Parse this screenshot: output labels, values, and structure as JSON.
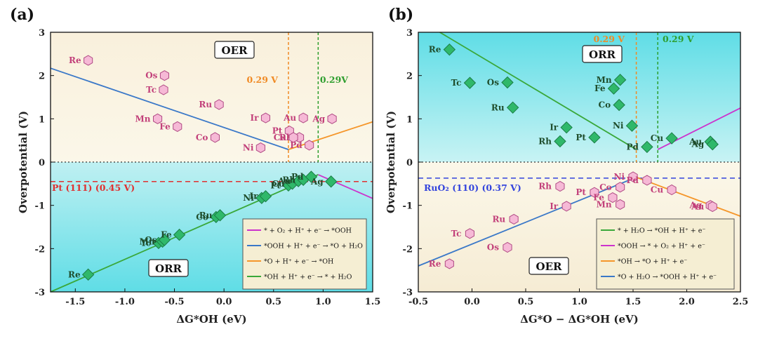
{
  "chart_data": [
    {
      "type": "scatter",
      "panel_label": "(a)",
      "xlabel": "ΔG*OH (eV)",
      "ylabel": "Overpotential (V)",
      "xlim": [
        -1.75,
        1.5
      ],
      "ylim": [
        -3,
        3
      ],
      "xticks": [
        "-1.5",
        "-1.0",
        "-0.5",
        "0.0",
        "0.5",
        "1.0",
        "1.5"
      ],
      "xtick_values": [
        -1.5,
        -1.0,
        -0.5,
        0.0,
        0.5,
        1.0,
        1.5
      ],
      "yticks": [
        "-3",
        "-2",
        "-1",
        "0",
        "1",
        "2",
        "3"
      ],
      "ytick_values": [
        -3,
        -2,
        -1,
        0,
        1,
        2,
        3
      ],
      "region_labels": {
        "top": "OER",
        "bottom": "ORR"
      },
      "reference_line": {
        "label": "Pt (111) (0.45 V)",
        "y": -0.45,
        "color": "#e03030"
      },
      "vlines": [
        {
          "x": 0.65,
          "label": "0.29 V",
          "color": "#f08a24"
        },
        {
          "x": 0.95,
          "label": "0.29V",
          "color": "#2e9e2e"
        }
      ],
      "lines": [
        {
          "color": "#cc33cc",
          "points": [
            [
              0.95,
              -0.29
            ],
            [
              1.5,
              -0.84
            ]
          ]
        },
        {
          "color": "#3a78c8",
          "points": [
            [
              -1.75,
              2.17
            ],
            [
              0.65,
              0.29
            ]
          ]
        },
        {
          "color": "#f5962a",
          "points": [
            [
              0.65,
              0.29
            ],
            [
              1.5,
              0.93
            ]
          ]
        },
        {
          "color": "#3aa83a",
          "points": [
            [
              -1.75,
              -3.0
            ],
            [
              0.95,
              -0.29
            ]
          ]
        }
      ],
      "oer_points": [
        {
          "name": "Re",
          "x": -1.37,
          "y": 2.35
        },
        {
          "name": "Os",
          "x": -0.6,
          "y": 2.0
        },
        {
          "name": "Tc",
          "x": -0.61,
          "y": 1.67
        },
        {
          "name": "Ru",
          "x": -0.05,
          "y": 1.33
        },
        {
          "name": "Mn",
          "x": -0.67,
          "y": 1.0
        },
        {
          "name": "Fe",
          "x": -0.47,
          "y": 0.82
        },
        {
          "name": "Co",
          "x": -0.09,
          "y": 0.57
        },
        {
          "name": "Ir",
          "x": 0.42,
          "y": 1.02
        },
        {
          "name": "Pt",
          "x": 0.66,
          "y": 0.72
        },
        {
          "name": "Au",
          "x": 0.8,
          "y": 1.02
        },
        {
          "name": "Rh",
          "x": 0.76,
          "y": 0.57
        },
        {
          "name": "Cu",
          "x": 0.7,
          "y": 0.57
        },
        {
          "name": "Pd",
          "x": 0.86,
          "y": 0.39
        },
        {
          "name": "Ni",
          "x": 0.37,
          "y": 0.33
        },
        {
          "name": "Ag",
          "x": 1.09,
          "y": 1.0
        }
      ],
      "orr_points": [
        {
          "name": "Re",
          "x": -1.37,
          "y": -2.6
        },
        {
          "name": "Tc",
          "x": -0.66,
          "y": -1.87
        },
        {
          "name": "Mn",
          "x": -0.62,
          "y": -1.84
        },
        {
          "name": "Os",
          "x": -0.6,
          "y": -1.8
        },
        {
          "name": "Fe",
          "x": -0.45,
          "y": -1.68
        },
        {
          "name": "Co",
          "x": -0.08,
          "y": -1.27
        },
        {
          "name": "Ru",
          "x": -0.04,
          "y": -1.23
        },
        {
          "name": "Ni",
          "x": 0.38,
          "y": -0.83
        },
        {
          "name": "Ir",
          "x": 0.42,
          "y": -0.79
        },
        {
          "name": "Pt",
          "x": 0.65,
          "y": -0.54
        },
        {
          "name": "Cu",
          "x": 0.69,
          "y": -0.5
        },
        {
          "name": "Au",
          "x": 0.75,
          "y": -0.44
        },
        {
          "name": "Rh",
          "x": 0.8,
          "y": -0.41
        },
        {
          "name": "Pd",
          "x": 0.88,
          "y": -0.34
        },
        {
          "name": "Ag",
          "x": 1.08,
          "y": -0.45
        }
      ],
      "legend": [
        {
          "color": "#cc33cc",
          "text": "* + O₂ + H⁺ + e⁻ → *OOH"
        },
        {
          "color": "#3a78c8",
          "text": "*OOH + H⁺ + e⁻ → *O + H₂O"
        },
        {
          "color": "#f5962a",
          "text": "*O + H⁺ + e⁻ → *OH"
        },
        {
          "color": "#3aa83a",
          "text": "*OH + H⁺ + e⁻ → * + H₂O"
        }
      ]
    },
    {
      "type": "scatter",
      "panel_label": "(b)",
      "xlabel": "ΔG*O − ΔG*OH (eV)",
      "ylabel": "Overpotential (V)",
      "xlim": [
        -0.5,
        2.5
      ],
      "ylim": [
        -3,
        3
      ],
      "xticks": [
        "-0.5",
        "0.0",
        "0.5",
        "1.0",
        "1.5",
        "2.0",
        "2.5"
      ],
      "xtick_values": [
        -0.5,
        0.0,
        0.5,
        1.0,
        1.5,
        2.0,
        2.5
      ],
      "yticks": [
        "-3",
        "-2",
        "-1",
        "0",
        "1",
        "2",
        "3"
      ],
      "ytick_values": [
        -3,
        -2,
        -1,
        0,
        1,
        2,
        3
      ],
      "region_labels": {
        "top": "ORR",
        "bottom": "OER"
      },
      "reference_line": {
        "label": "RuO₂ (110) (0.37 V)",
        "y": -0.37,
        "color": "#3344dd"
      },
      "vlines": [
        {
          "x": 1.53,
          "label": "0.29 V",
          "color": "#f08a24"
        },
        {
          "x": 1.73,
          "label": "0.29 V",
          "color": "#2e9e2e"
        }
      ],
      "lines": [
        {
          "color": "#3aa83a",
          "points": [
            [
              -0.3,
              3.0
            ],
            [
              1.53,
              0.29
            ]
          ]
        },
        {
          "color": "#cc33cc",
          "points": [
            [
              1.73,
              0.29
            ],
            [
              2.5,
              1.25
            ]
          ]
        },
        {
          "color": "#f5962a",
          "points": [
            [
              1.53,
              -0.35
            ],
            [
              2.5,
              -1.25
            ]
          ]
        },
        {
          "color": "#3a78c8",
          "points": [
            [
              -0.5,
              -2.4
            ],
            [
              1.53,
              -0.35
            ]
          ]
        }
      ],
      "orr_points": [
        {
          "name": "Re",
          "x": -0.21,
          "y": 2.6
        },
        {
          "name": "Tc",
          "x": -0.02,
          "y": 1.83
        },
        {
          "name": "Os",
          "x": 0.33,
          "y": 1.84
        },
        {
          "name": "Ru",
          "x": 0.38,
          "y": 1.26
        },
        {
          "name": "Mn",
          "x": 1.38,
          "y": 1.9
        },
        {
          "name": "Fe",
          "x": 1.32,
          "y": 1.7
        },
        {
          "name": "Co",
          "x": 1.37,
          "y": 1.32
        },
        {
          "name": "Ni",
          "x": 1.49,
          "y": 0.84
        },
        {
          "name": "Ir",
          "x": 0.88,
          "y": 0.8
        },
        {
          "name": "Pt",
          "x": 1.14,
          "y": 0.57
        },
        {
          "name": "Rh",
          "x": 0.82,
          "y": 0.48
        },
        {
          "name": "Pd",
          "x": 1.63,
          "y": 0.35
        },
        {
          "name": "Cu",
          "x": 1.86,
          "y": 0.55
        },
        {
          "name": "Au",
          "x": 2.22,
          "y": 0.47
        },
        {
          "name": "Ag",
          "x": 2.24,
          "y": 0.41
        }
      ],
      "oer_points": [
        {
          "name": "Ni",
          "x": 1.5,
          "y": -0.34
        },
        {
          "name": "Pd",
          "x": 1.63,
          "y": -0.42
        },
        {
          "name": "Co",
          "x": 1.38,
          "y": -0.58
        },
        {
          "name": "Rh",
          "x": 0.82,
          "y": -0.56
        },
        {
          "name": "Pt",
          "x": 1.14,
          "y": -0.7
        },
        {
          "name": "Fe",
          "x": 1.31,
          "y": -0.82
        },
        {
          "name": "Mn",
          "x": 1.38,
          "y": -0.98
        },
        {
          "name": "Ir",
          "x": 0.88,
          "y": -1.02
        },
        {
          "name": "Cu",
          "x": 1.86,
          "y": -0.64
        },
        {
          "name": "Ag",
          "x": 2.22,
          "y": -1.0
        },
        {
          "name": "Au",
          "x": 2.24,
          "y": -1.03
        },
        {
          "name": "Ru",
          "x": 0.39,
          "y": -1.32
        },
        {
          "name": "Tc",
          "x": -0.02,
          "y": -1.65
        },
        {
          "name": "Os",
          "x": 0.33,
          "y": -1.97
        },
        {
          "name": "Re",
          "x": -0.21,
          "y": -2.35
        }
      ],
      "legend": [
        {
          "color": "#3aa83a",
          "text": "* + H₂O → *OH + H⁺ + e⁻"
        },
        {
          "color": "#cc33cc",
          "text": "*OOH → * + O₂ + H⁺ + e⁻"
        },
        {
          "color": "#f5962a",
          "text": "*OH → *O + H⁺ + e⁻"
        },
        {
          "color": "#3a78c8",
          "text": "*O + H₂O → *OOH + H⁺ + e⁻"
        }
      ]
    }
  ]
}
